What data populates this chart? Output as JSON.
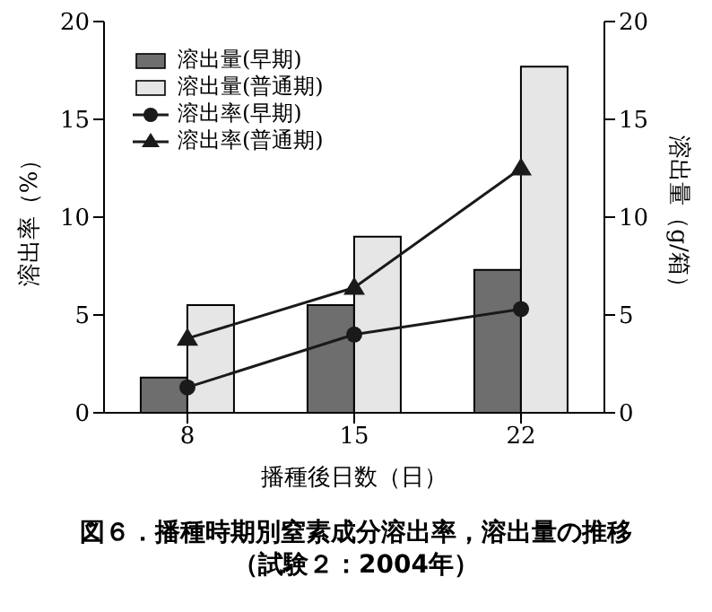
{
  "chart_data": {
    "type": "bar",
    "title": "図６．播種時期別窒素成分溶出率，溶出量の推移",
    "subtitle": "（試験２：2004年）",
    "xlabel": "播種後日数（日）",
    "ylabel": "溶出率（%）",
    "y2label": "溶出量（g/箱）",
    "categories": [
      "8",
      "15",
      "22"
    ],
    "series": [
      {
        "name": "溶出量(早期)",
        "axis": "y2",
        "color": "#6e6e6e",
        "values": [
          1.8,
          5.5,
          7.3
        ]
      },
      {
        "name": "溶出量(普通期)",
        "axis": "y2",
        "color": "#e6e6e6",
        "values": [
          5.5,
          9.0,
          17.7
        ]
      },
      {
        "name": "溶出率(早期)",
        "type": "line",
        "color": "#1a1a1a",
        "marker": "circle",
        "values": [
          1.3,
          4.0,
          5.3
        ]
      },
      {
        "name": "溶出率(普通期)",
        "type": "line",
        "color": "#1a1a1a",
        "marker": "triangle",
        "values": [
          3.8,
          6.4,
          12.5
        ]
      }
    ],
    "ylim": [
      0,
      20
    ],
    "yticks": [
      0,
      5,
      10,
      15,
      20
    ],
    "y2lim": [
      0,
      20
    ],
    "y2ticks": [
      0,
      5,
      10,
      15,
      20
    ],
    "grid": false,
    "legend": "top left"
  }
}
